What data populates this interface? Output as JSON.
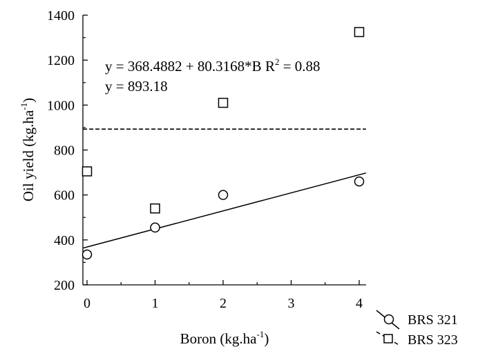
{
  "chart_data": {
    "type": "scatter",
    "xlabel": "Boron (kg.ha",
    "xlabel_sup": "-1",
    "xlabel_end": ")",
    "ylabel": "Oil yield (kg.ha",
    "ylabel_sup": "-1",
    "ylabel_end": ")",
    "xlim": [
      0,
      4
    ],
    "ylim": [
      200,
      1400
    ],
    "x_ticks": [
      0,
      1,
      2,
      3,
      4
    ],
    "y_ticks": [
      200,
      400,
      600,
      800,
      1000,
      1200,
      1400
    ],
    "grid": false,
    "legend_position": "bottom-right",
    "series": [
      {
        "name": "BRS 321",
        "marker": "circle",
        "line_style": "solid",
        "x": [
          0,
          1,
          2,
          4
        ],
        "y": [
          335,
          455,
          600,
          660
        ],
        "fit": {
          "type": "linear",
          "intercept": 368.4882,
          "slope": 80.3168
        }
      },
      {
        "name": "BRS 323",
        "marker": "square",
        "line_style": "dashed",
        "x": [
          0,
          1,
          2,
          4
        ],
        "y": [
          705,
          540,
          1010,
          1325
        ],
        "fit": {
          "type": "constant",
          "value": 893.18
        }
      }
    ],
    "annotations": [
      {
        "text": "y = 368.4882 + 80.3168*B R",
        "sup": "2",
        "text_end": " = 0.88"
      },
      {
        "text": "y = 893.18"
      }
    ],
    "colors": {
      "ink": "#000000",
      "background": "#ffffff"
    }
  }
}
